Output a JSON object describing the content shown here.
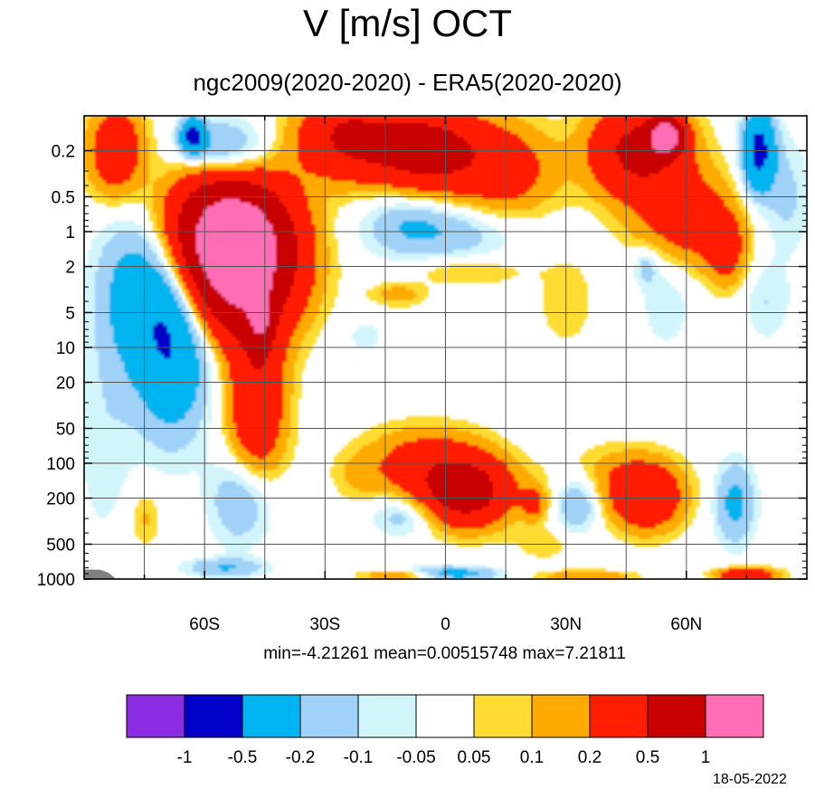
{
  "title": "V [m/s] OCT",
  "subtitle": "ngc2009(2020-2020) - ERA5(2020-2020)",
  "stats": "min=-4.21261   mean=0.00515748   max=7.21811",
  "date": "18-05-2022",
  "chart_data": {
    "type": "heatmap",
    "title": "V [m/s] OCT",
    "subtitle": "ngc2009(2020-2020) - ERA5(2020-2020)",
    "xlabel": "",
    "ylabel": "",
    "x_axis": {
      "range": [
        -90,
        90
      ],
      "ticks": [
        -60,
        -30,
        0,
        30,
        60
      ],
      "tick_labels": [
        "60S",
        "30S",
        "0",
        "30N",
        "60N"
      ],
      "grid": true
    },
    "y_axis": {
      "scale": "log",
      "inverted": true,
      "range": [
        1000,
        0.1
      ],
      "ticks": [
        0.2,
        0.5,
        1,
        2,
        5,
        10,
        20,
        50,
        100,
        200,
        500,
        1000
      ],
      "tick_labels": [
        "0.2",
        "0.5",
        "1",
        "2",
        "5",
        "10",
        "20",
        "50",
        "100",
        "200",
        "500",
        "1000"
      ],
      "grid": true
    },
    "levels": [
      -1,
      -0.5,
      -0.2,
      -0.1,
      -0.05,
      0.05,
      0.1,
      0.2,
      0.5,
      1
    ],
    "level_labels": [
      "-1",
      "-0.5",
      "-0.2",
      "-0.1",
      "-0.05",
      "0.05",
      "0.1",
      "0.2",
      "0.5",
      "1"
    ],
    "colors": [
      "#8b2be2",
      "#0000c8",
      "#00b4f0",
      "#a0d2f8",
      "#d2f5fc",
      "#ffffff",
      "#ffdc32",
      "#ffaa00",
      "#ff1e00",
      "#c80000",
      "#ff6eb4"
    ],
    "missing_color": "#808080",
    "colorbar_position": "bottom",
    "stats": {
      "min": -4.21261,
      "mean": 0.00515748,
      "max": 7.21811
    },
    "features": [
      {
        "lat": -52,
        "p": 2.0,
        "v": 1.3,
        "slat": 14,
        "slog": 0.55
      },
      {
        "lat": -55,
        "p": 0.8,
        "v": 0.7,
        "slat": 15,
        "slog": 0.45
      },
      {
        "lat": -47,
        "p": 30,
        "v": 0.45,
        "slat": 7,
        "slog": 0.75
      },
      {
        "lat": -46,
        "p": 6,
        "v": 0.5,
        "slat": 3,
        "slog": 0.25
      },
      {
        "lat": -82,
        "p": 0.2,
        "v": 0.4,
        "slat": 7,
        "slog": 0.4
      },
      {
        "lat": -68,
        "p": 7,
        "v": -0.55,
        "slat": 9,
        "slog": 0.8
      },
      {
        "lat": -78,
        "p": 3,
        "v": -0.25,
        "slat": 9,
        "slog": 0.7
      },
      {
        "lat": -85,
        "p": 60,
        "v": -0.08,
        "slat": 8,
        "slog": 1.0
      },
      {
        "lat": -55,
        "p": 0.2,
        "v": -0.3,
        "slat": 10,
        "slog": 0.25
      },
      {
        "lat": -63,
        "p": 0.15,
        "v": -0.6,
        "slat": 3,
        "slog": 0.15
      },
      {
        "lat": -50,
        "p": 200,
        "v": -0.25,
        "slat": 8,
        "slog": 0.4
      },
      {
        "lat": -25,
        "p": 0.15,
        "v": 0.5,
        "slat": 12,
        "slog": 0.35
      },
      {
        "lat": -5,
        "p": 0.2,
        "v": 0.7,
        "slat": 14,
        "slog": 0.35
      },
      {
        "lat": 15,
        "p": 0.3,
        "v": 0.3,
        "slat": 12,
        "slog": 0.4
      },
      {
        "lat": 48,
        "p": 0.2,
        "v": 0.6,
        "slat": 12,
        "slog": 0.4
      },
      {
        "lat": 55,
        "p": 0.15,
        "v": 1.2,
        "slat": 4,
        "slog": 0.15
      },
      {
        "lat": 60,
        "p": 0.8,
        "v": 0.35,
        "slat": 12,
        "slog": 0.4
      },
      {
        "lat": 70,
        "p": 1.5,
        "v": 0.25,
        "slat": 5,
        "slog": 0.3
      },
      {
        "lat": 78,
        "p": 0.2,
        "v": -0.6,
        "slat": 4,
        "slog": 0.35
      },
      {
        "lat": 85,
        "p": 0.5,
        "v": -0.12,
        "slat": 6,
        "slog": 0.5
      },
      {
        "lat": 0,
        "p": 1.0,
        "v": -0.18,
        "slat": 18,
        "slog": 0.25
      },
      {
        "lat": -10,
        "p": 0.7,
        "v": -0.12,
        "slat": 10,
        "slog": 0.3
      },
      {
        "lat": 5,
        "p": 2.2,
        "v": 0.12,
        "slat": 14,
        "slog": 0.12
      },
      {
        "lat": -12,
        "p": 3.5,
        "v": 0.15,
        "slat": 7,
        "slog": 0.1
      },
      {
        "lat": 30,
        "p": 4,
        "v": 0.08,
        "slat": 8,
        "slog": 0.45
      },
      {
        "lat": 55,
        "p": 3,
        "v": -0.1,
        "slat": 7,
        "slog": 0.55
      },
      {
        "lat": 50,
        "p": 2,
        "v": -0.15,
        "slat": 3,
        "slog": 0.15
      },
      {
        "lat": 80,
        "p": 4,
        "v": -0.1,
        "slat": 6,
        "slog": 0.35
      },
      {
        "lat": -20,
        "p": 8,
        "v": -0.07,
        "slat": 6,
        "slog": 0.2
      },
      {
        "lat": 5,
        "p": 180,
        "v": 0.7,
        "slat": 11,
        "slog": 0.28
      },
      {
        "lat": -5,
        "p": 100,
        "v": 0.3,
        "slat": 15,
        "slog": 0.3
      },
      {
        "lat": -10,
        "p": 280,
        "v": -0.18,
        "slat": 8,
        "slog": 0.18
      },
      {
        "lat": 22,
        "p": 220,
        "v": 0.25,
        "slat": 3,
        "slog": 0.15
      },
      {
        "lat": 33,
        "p": 220,
        "v": -0.22,
        "slat": 5,
        "slog": 0.25
      },
      {
        "lat": 50,
        "p": 200,
        "v": 0.45,
        "slat": 9,
        "slog": 0.28
      },
      {
        "lat": 42,
        "p": 120,
        "v": 0.12,
        "slat": 14,
        "slog": 0.25
      },
      {
        "lat": 72,
        "p": 220,
        "v": -0.25,
        "slat": 5,
        "slog": 0.35
      },
      {
        "lat": -22,
        "p": 130,
        "v": 0.08,
        "slat": 6,
        "slog": 0.2
      },
      {
        "lat": -75,
        "p": 300,
        "v": 0.12,
        "slat": 4,
        "slog": 0.25
      },
      {
        "lat": 25,
        "p": 500,
        "v": 0.08,
        "slat": 8,
        "slog": 0.15
      },
      {
        "lat": 0,
        "p": 900,
        "v": -0.35,
        "slat": 12,
        "slog": 0.06
      },
      {
        "lat": 75,
        "p": 920,
        "v": 0.5,
        "slat": 7,
        "slog": 0.06
      },
      {
        "lat": -10,
        "p": 930,
        "v": 0.3,
        "slat": 10,
        "slog": 0.05
      },
      {
        "lat": 35,
        "p": 950,
        "v": 0.2,
        "slat": 12,
        "slog": 0.05
      },
      {
        "lat": -55,
        "p": 800,
        "v": -0.2,
        "slat": 10,
        "slog": 0.08
      }
    ]
  }
}
